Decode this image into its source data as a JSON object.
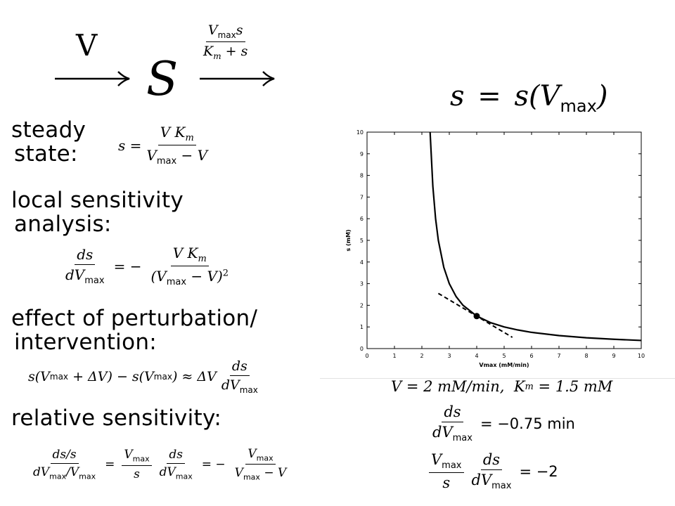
{
  "scheme": {
    "influx_label": "V",
    "species": "S",
    "rate_num": "V",
    "rate_num_sub": "max",
    "rate_num_var": "s",
    "rate_den": "K",
    "rate_den_sub": "m",
    "rate_den_tail": "+ s"
  },
  "headline": {
    "lhs": "s",
    "eq": "=",
    "rhs": "s(V",
    "sub": "max",
    "close": ")"
  },
  "steady": {
    "label_line1": "steady",
    "label_line2": "state:",
    "lhs": "s =",
    "num": "V K",
    "num_sub": "m",
    "den": "V",
    "den_sub": "max",
    "den_tail": "− V"
  },
  "local": {
    "label_line1": "local sensitivity",
    "label_line2": "analysis:",
    "num": "ds",
    "den": "dV",
    "den_sub": "max",
    "eq": "= −",
    "rnum": "V K",
    "rnum_sub": "m",
    "rden": "(V",
    "rden_sub": "max",
    "rden_tail": "− V)",
    "rden_exp": "2"
  },
  "effect": {
    "label_line1": "effect of perturbation/",
    "label_line2": "intervention:",
    "lhs": "s(V",
    "lhs_sub": "max",
    "lhs_tail": "+ ΔV) − s(V",
    "lhs_sub2": "max",
    "lhs_end": ") ≈ ΔV",
    "num": "ds",
    "den": "dV",
    "den_sub": "max"
  },
  "relative": {
    "label": "relative sensitivity:",
    "f1_num": "ds/s",
    "f1_den": "dV",
    "f1_den_sub": "max",
    "f1_den_tail": "/V",
    "f1_den_sub2": "max",
    "eq1": "=",
    "f2_num": "V",
    "f2_num_sub": "max",
    "f2_den": "s",
    "f3_num": "ds",
    "f3_den": "dV",
    "f3_den_sub": "max",
    "eq2": "= −",
    "f4_num": "V",
    "f4_num_sub": "max",
    "f4_den": "V",
    "f4_den_sub": "max",
    "f4_den_tail": "− V"
  },
  "params": {
    "line": "V = 2 mM/min,",
    "km": "K",
    "km_sub": "m",
    "km_val": "= 1.5 mM"
  },
  "result1": {
    "num": "ds",
    "den": "dV",
    "den_sub": "max",
    "value": "= −0.75 min"
  },
  "result2": {
    "num": "V",
    "num_sub": "max",
    "den": "s",
    "num2": "ds",
    "den2": "dV",
    "den2_sub": "max",
    "value": "= −2"
  },
  "chart_data": {
    "type": "line",
    "xlabel": "Vmax (mM/min)",
    "ylabel": "s (mM)",
    "xlim": [
      0,
      10
    ],
    "ylim": [
      0,
      10
    ],
    "xticks": [
      0,
      1,
      2,
      3,
      4,
      5,
      6,
      7,
      8,
      9,
      10
    ],
    "yticks": [
      0,
      1,
      2,
      3,
      4,
      5,
      6,
      7,
      8,
      9,
      10
    ],
    "grid": false,
    "series": [
      {
        "style": "solid",
        "x": [
          2.3,
          2.4,
          2.5,
          2.6,
          2.8,
          3.0,
          3.25,
          3.5,
          4.0,
          4.5,
          5.0,
          5.5,
          6.0,
          7.0,
          8.0,
          9.0,
          10.0
        ],
        "y": [
          10.0,
          7.5,
          6.0,
          5.0,
          3.75,
          3.0,
          2.4,
          2.0,
          1.5,
          1.2,
          1.0,
          0.86,
          0.75,
          0.6,
          0.5,
          0.43,
          0.375
        ]
      },
      {
        "style": "dashed",
        "x": [
          2.6,
          5.3
        ],
        "y": [
          2.55,
          0.52
        ]
      }
    ],
    "marker": {
      "x": 4.0,
      "y": 1.5
    }
  }
}
